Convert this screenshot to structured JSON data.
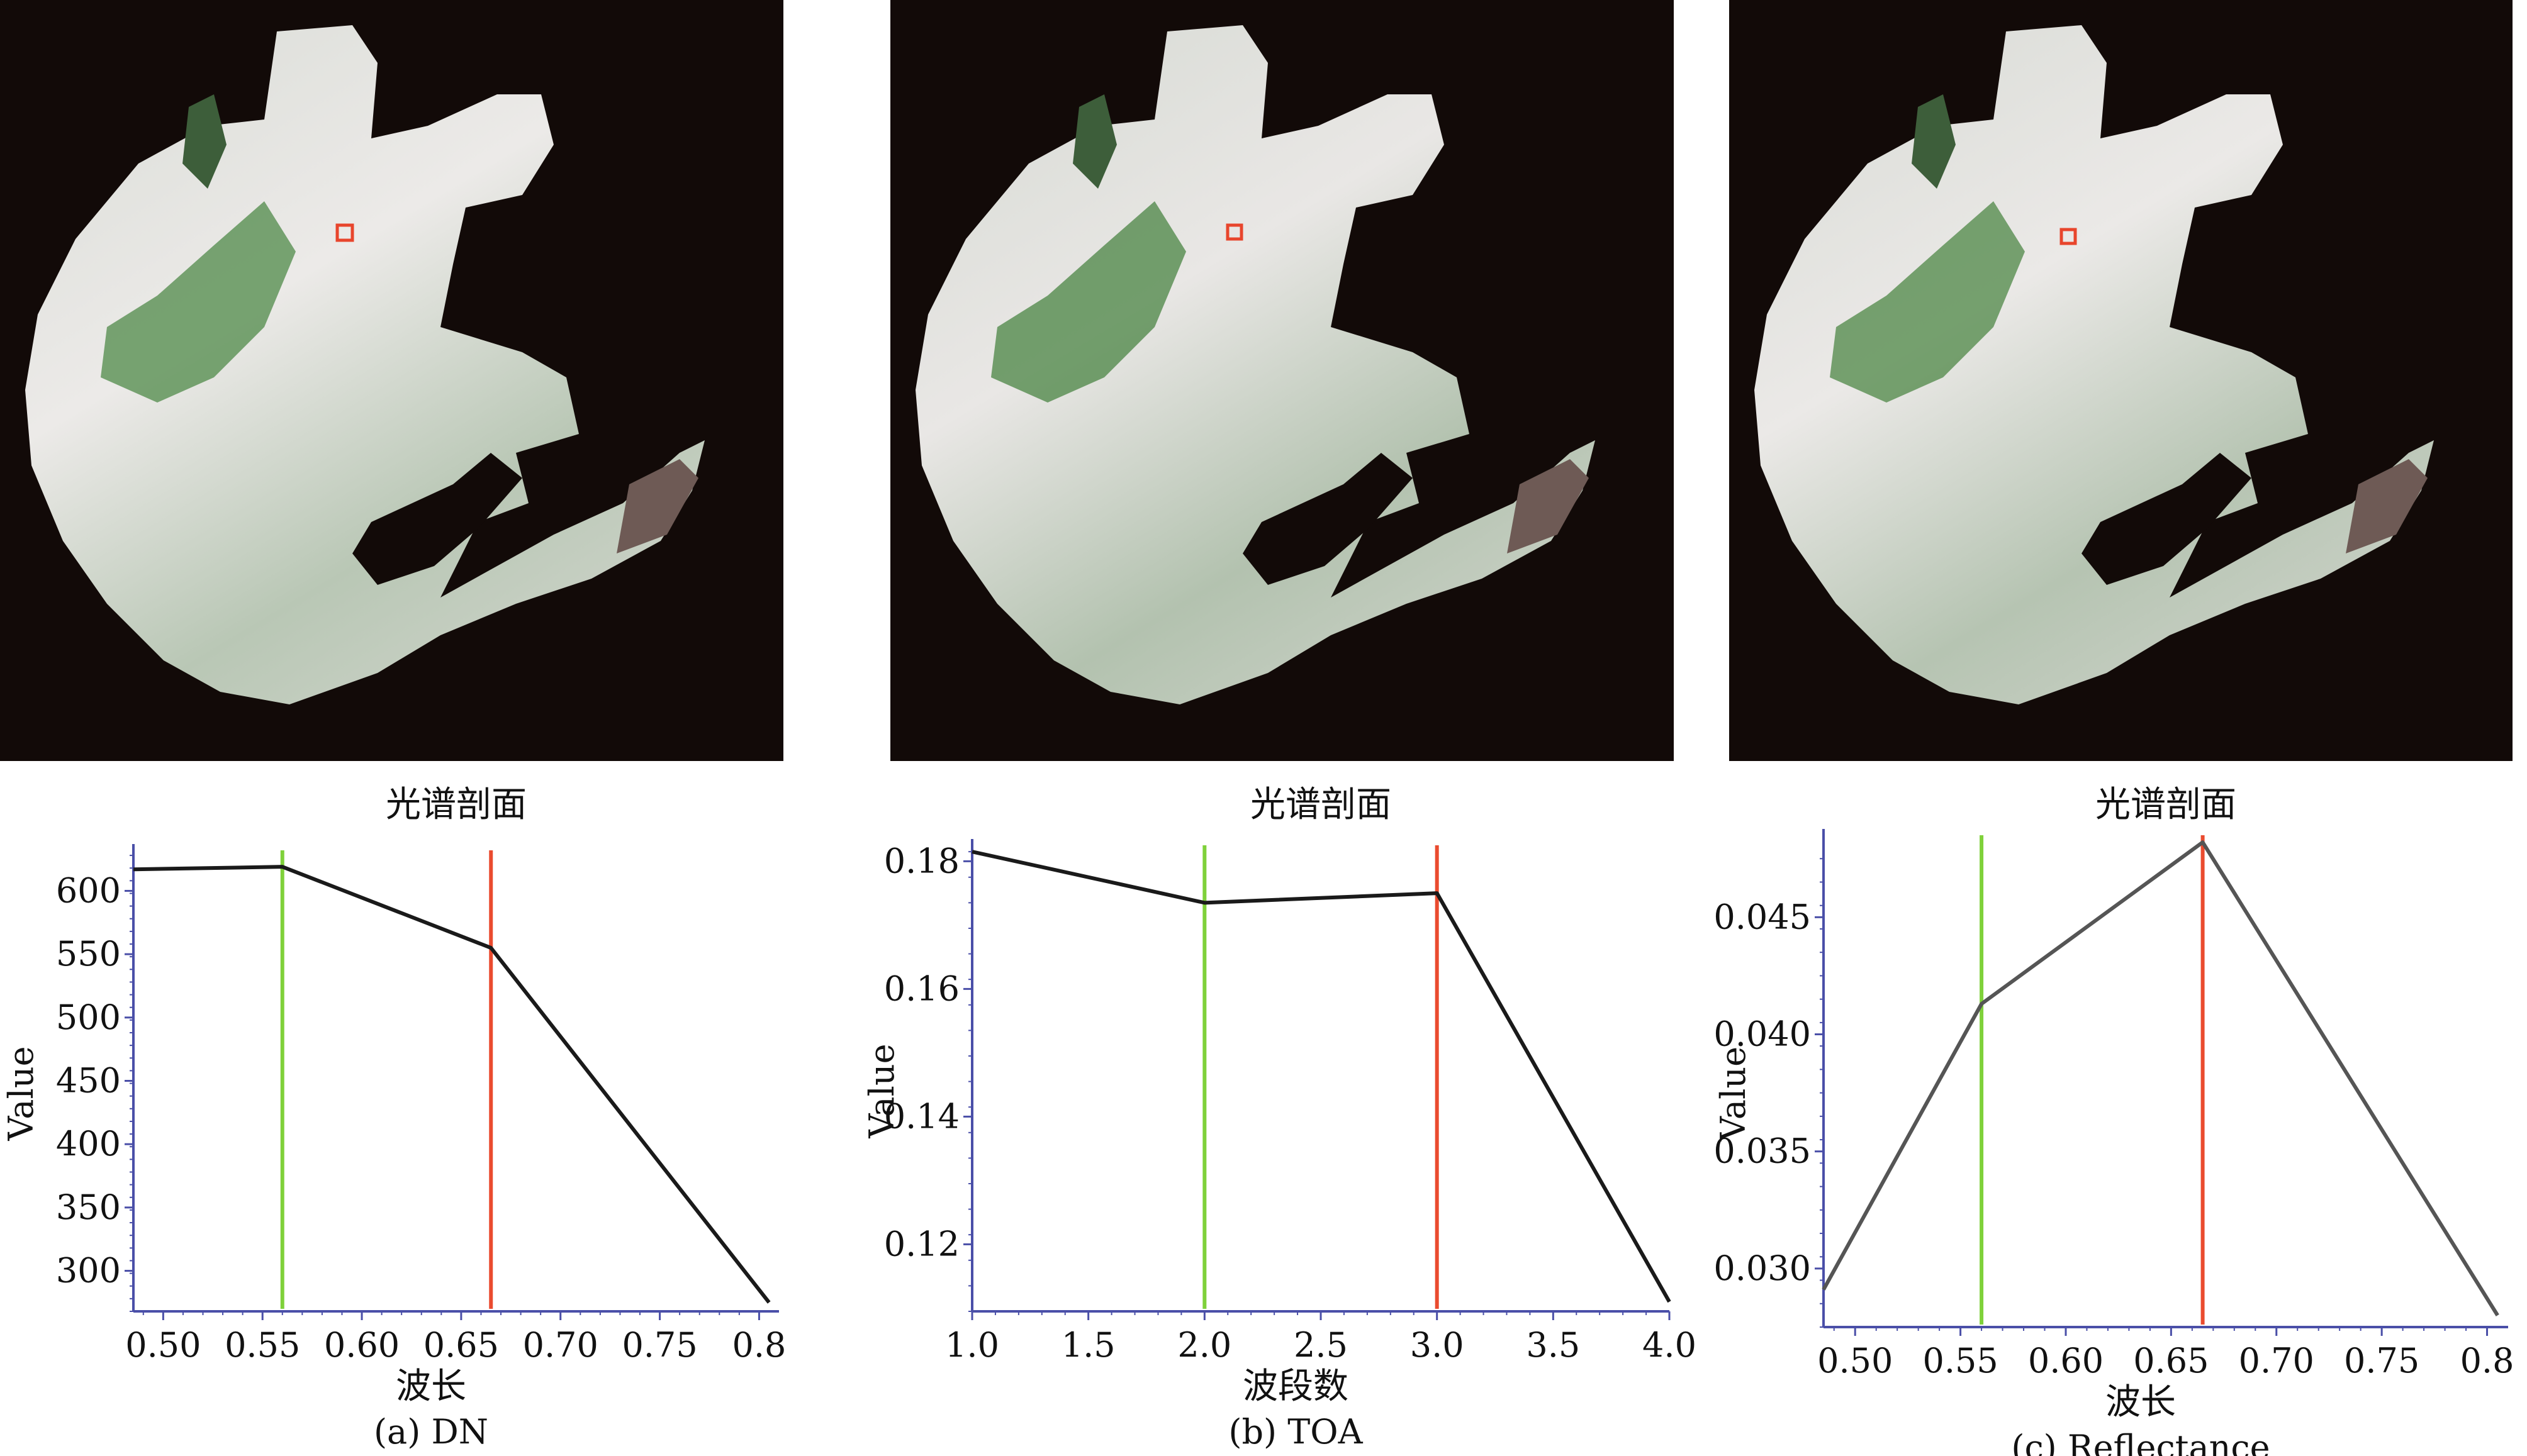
{
  "panels": [
    {
      "id": "dn",
      "caption": "(a) DN",
      "marker_color": "#e8452c"
    },
    {
      "id": "toa",
      "caption": "(b) TOA",
      "marker_color": "#e8452c"
    },
    {
      "id": "refl",
      "caption": "(c) Reflectance",
      "marker_color": "#e8452c"
    }
  ],
  "chart_data": [
    {
      "type": "line",
      "title": "光谱剖面",
      "xlabel": "波长",
      "ylabel": "Value",
      "xlim": [
        0.485,
        0.81
      ],
      "ylim": [
        268,
        632
      ],
      "xticks": [
        0.5,
        0.55,
        0.6,
        0.65,
        0.7,
        0.75,
        0.8
      ],
      "xtick_labels": [
        "0.50",
        "0.55",
        "0.60",
        "0.65",
        "0.70",
        "0.75",
        "0.8"
      ],
      "yticks": [
        300,
        350,
        400,
        450,
        500,
        550,
        600
      ],
      "ytick_labels": [
        "300",
        "350",
        "400",
        "450",
        "500",
        "550",
        "600"
      ],
      "x": [
        0.485,
        0.56,
        0.665,
        0.805
      ],
      "y": [
        617,
        619,
        555,
        275
      ],
      "markers": [
        {
          "x": 0.56,
          "color": "#7fd13a"
        },
        {
          "x": 0.665,
          "color": "#ea4b2f"
        }
      ],
      "line_color": "#1a1a1a",
      "grid": false
    },
    {
      "type": "line",
      "title": "光谱剖面",
      "xlabel": "波段数",
      "ylabel": "Value",
      "xlim": [
        1.0,
        4.0
      ],
      "ylim": [
        0.1095,
        0.1825
      ],
      "xticks": [
        1.0,
        1.5,
        2.0,
        2.5,
        3.0,
        3.5,
        4.0
      ],
      "xtick_labels": [
        "1.0",
        "1.5",
        "2.0",
        "2.5",
        "3.0",
        "3.5",
        "4.0"
      ],
      "yticks": [
        0.12,
        0.14,
        0.16,
        0.18
      ],
      "ytick_labels": [
        "0.12",
        "0.14",
        "0.16",
        "0.18"
      ],
      "x": [
        1.0,
        2.0,
        3.0,
        4.0
      ],
      "y": [
        0.1815,
        0.1735,
        0.175,
        0.111
      ],
      "markers": [
        {
          "x": 2.0,
          "color": "#7fd13a"
        },
        {
          "x": 3.0,
          "color": "#ea4b2f"
        }
      ],
      "line_color": "#1a1a1a",
      "grid": false
    },
    {
      "type": "line",
      "title": "光谱剖面",
      "xlabel": "波长",
      "ylabel": "Value",
      "xlim": [
        0.485,
        0.81
      ],
      "ylim": [
        0.0275,
        0.0485
      ],
      "xticks": [
        0.5,
        0.55,
        0.6,
        0.65,
        0.7,
        0.75,
        0.8
      ],
      "xtick_labels": [
        "0.50",
        "0.55",
        "0.60",
        "0.65",
        "0.70",
        "0.75",
        "0.8"
      ],
      "yticks": [
        0.03,
        0.035,
        0.04,
        0.045
      ],
      "ytick_labels": [
        "0.030",
        "0.035",
        "0.040",
        "0.045"
      ],
      "x": [
        0.485,
        0.56,
        0.665,
        0.805
      ],
      "y": [
        0.0291,
        0.0413,
        0.0482,
        0.028
      ],
      "markers": [
        {
          "x": 0.56,
          "color": "#7fd13a"
        },
        {
          "x": 0.665,
          "color": "#ea4b2f"
        }
      ],
      "line_color": "#555555",
      "grid": false
    }
  ]
}
